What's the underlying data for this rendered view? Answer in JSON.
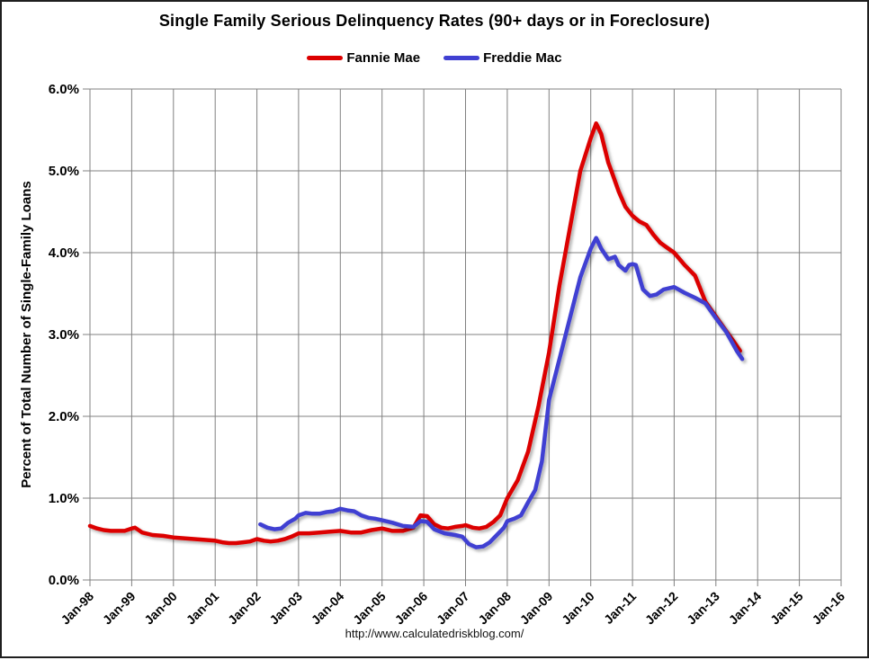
{
  "title": "Single Family Serious Delinquency Rates (90+ days or in Foreclosure)",
  "legend": [
    {
      "label": "Fannie Mae",
      "color": "#dc0000"
    },
    {
      "label": "Freddie Mac",
      "color": "#4040d2"
    }
  ],
  "footer": {
    "url": "http://www.calculatedriskblog.com/"
  },
  "chart_data": {
    "type": "line",
    "title": "Single Family Serious Delinquency Rates (90+ days or in Foreclosure)",
    "xlabel": "",
    "ylabel": "Percent of Total Number of Single-Family Loans",
    "xlim": [
      1998,
      2016
    ],
    "ylim": [
      0,
      6
    ],
    "grid": true,
    "grid_color": "#808080",
    "legend_position": "top",
    "x_ticks": [
      "Jan-98",
      "Jan-99",
      "Jan-00",
      "Jan-01",
      "Jan-02",
      "Jan-03",
      "Jan-04",
      "Jan-05",
      "Jan-06",
      "Jan-07",
      "Jan-08",
      "Jan-09",
      "Jan-10",
      "Jan-11",
      "Jan-12",
      "Jan-13",
      "Jan-14",
      "Jan-15",
      "Jan-16"
    ],
    "x_tick_years": [
      1998,
      1999,
      2000,
      2001,
      2002,
      2003,
      2004,
      2005,
      2006,
      2007,
      2008,
      2009,
      2010,
      2011,
      2012,
      2013,
      2014,
      2015,
      2016
    ],
    "y_ticks": [
      "0.0%",
      "1.0%",
      "2.0%",
      "3.0%",
      "4.0%",
      "5.0%",
      "6.0%"
    ],
    "series": [
      {
        "name": "Fannie Mae",
        "color": "#dc0000",
        "points": [
          [
            1998.0,
            0.66
          ],
          [
            1998.17,
            0.63
          ],
          [
            1998.33,
            0.61
          ],
          [
            1998.5,
            0.6
          ],
          [
            1998.67,
            0.6
          ],
          [
            1998.83,
            0.6
          ],
          [
            1999.0,
            0.63
          ],
          [
            1999.08,
            0.64
          ],
          [
            1999.25,
            0.58
          ],
          [
            1999.5,
            0.55
          ],
          [
            1999.75,
            0.54
          ],
          [
            2000.0,
            0.52
          ],
          [
            2000.25,
            0.51
          ],
          [
            2000.5,
            0.5
          ],
          [
            2000.75,
            0.49
          ],
          [
            2001.0,
            0.48
          ],
          [
            2001.17,
            0.46
          ],
          [
            2001.33,
            0.45
          ],
          [
            2001.5,
            0.45
          ],
          [
            2001.67,
            0.46
          ],
          [
            2001.83,
            0.47
          ],
          [
            2002.0,
            0.5
          ],
          [
            2002.17,
            0.48
          ],
          [
            2002.33,
            0.47
          ],
          [
            2002.5,
            0.48
          ],
          [
            2002.67,
            0.5
          ],
          [
            2002.83,
            0.53
          ],
          [
            2003.0,
            0.57
          ],
          [
            2003.25,
            0.57
          ],
          [
            2003.5,
            0.58
          ],
          [
            2003.75,
            0.59
          ],
          [
            2004.0,
            0.6
          ],
          [
            2004.25,
            0.58
          ],
          [
            2004.5,
            0.58
          ],
          [
            2004.75,
            0.61
          ],
          [
            2005.0,
            0.63
          ],
          [
            2005.25,
            0.6
          ],
          [
            2005.5,
            0.6
          ],
          [
            2005.75,
            0.64
          ],
          [
            2005.92,
            0.79
          ],
          [
            2006.08,
            0.78
          ],
          [
            2006.25,
            0.68
          ],
          [
            2006.42,
            0.64
          ],
          [
            2006.58,
            0.63
          ],
          [
            2006.75,
            0.65
          ],
          [
            2006.92,
            0.66
          ],
          [
            2007.0,
            0.67
          ],
          [
            2007.17,
            0.64
          ],
          [
            2007.33,
            0.63
          ],
          [
            2007.5,
            0.65
          ],
          [
            2007.67,
            0.71
          ],
          [
            2007.83,
            0.79
          ],
          [
            2008.0,
            1.0
          ],
          [
            2008.25,
            1.22
          ],
          [
            2008.5,
            1.57
          ],
          [
            2008.75,
            2.13
          ],
          [
            2009.0,
            2.78
          ],
          [
            2009.25,
            3.6
          ],
          [
            2009.5,
            4.3
          ],
          [
            2009.75,
            5.0
          ],
          [
            2010.0,
            5.4
          ],
          [
            2010.13,
            5.58
          ],
          [
            2010.25,
            5.45
          ],
          [
            2010.42,
            5.1
          ],
          [
            2010.5,
            4.99
          ],
          [
            2010.67,
            4.75
          ],
          [
            2010.83,
            4.56
          ],
          [
            2011.0,
            4.45
          ],
          [
            2011.17,
            4.38
          ],
          [
            2011.33,
            4.34
          ],
          [
            2011.5,
            4.22
          ],
          [
            2011.67,
            4.12
          ],
          [
            2011.83,
            4.06
          ],
          [
            2012.0,
            4.0
          ],
          [
            2012.25,
            3.85
          ],
          [
            2012.5,
            3.72
          ],
          [
            2012.75,
            3.4
          ],
          [
            2013.0,
            3.22
          ],
          [
            2013.25,
            3.04
          ],
          [
            2013.42,
            2.92
          ],
          [
            2013.58,
            2.8
          ]
        ]
      },
      {
        "name": "Freddie Mac",
        "color": "#4040d2",
        "points": [
          [
            2002.08,
            0.68
          ],
          [
            2002.25,
            0.64
          ],
          [
            2002.42,
            0.62
          ],
          [
            2002.58,
            0.63
          ],
          [
            2002.75,
            0.7
          ],
          [
            2002.92,
            0.75
          ],
          [
            2003.0,
            0.79
          ],
          [
            2003.17,
            0.82
          ],
          [
            2003.33,
            0.81
          ],
          [
            2003.5,
            0.81
          ],
          [
            2003.67,
            0.83
          ],
          [
            2003.83,
            0.84
          ],
          [
            2004.0,
            0.87
          ],
          [
            2004.17,
            0.85
          ],
          [
            2004.33,
            0.84
          ],
          [
            2004.5,
            0.79
          ],
          [
            2004.67,
            0.76
          ],
          [
            2004.83,
            0.75
          ],
          [
            2005.0,
            0.73
          ],
          [
            2005.25,
            0.7
          ],
          [
            2005.5,
            0.66
          ],
          [
            2005.75,
            0.65
          ],
          [
            2005.92,
            0.72
          ],
          [
            2006.08,
            0.71
          ],
          [
            2006.25,
            0.62
          ],
          [
            2006.5,
            0.57
          ],
          [
            2006.75,
            0.55
          ],
          [
            2006.92,
            0.53
          ],
          [
            2007.08,
            0.44
          ],
          [
            2007.25,
            0.4
          ],
          [
            2007.42,
            0.41
          ],
          [
            2007.58,
            0.46
          ],
          [
            2007.75,
            0.55
          ],
          [
            2007.92,
            0.64
          ],
          [
            2008.0,
            0.72
          ],
          [
            2008.17,
            0.75
          ],
          [
            2008.33,
            0.79
          ],
          [
            2008.5,
            0.95
          ],
          [
            2008.67,
            1.1
          ],
          [
            2008.83,
            1.45
          ],
          [
            2009.0,
            2.2
          ],
          [
            2009.25,
            2.7
          ],
          [
            2009.5,
            3.2
          ],
          [
            2009.75,
            3.7
          ],
          [
            2010.0,
            4.05
          ],
          [
            2010.13,
            4.18
          ],
          [
            2010.25,
            4.05
          ],
          [
            2010.42,
            3.92
          ],
          [
            2010.58,
            3.95
          ],
          [
            2010.67,
            3.85
          ],
          [
            2010.83,
            3.78
          ],
          [
            2010.92,
            3.85
          ],
          [
            2011.0,
            3.86
          ],
          [
            2011.08,
            3.85
          ],
          [
            2011.25,
            3.55
          ],
          [
            2011.42,
            3.47
          ],
          [
            2011.58,
            3.49
          ],
          [
            2011.75,
            3.55
          ],
          [
            2011.92,
            3.57
          ],
          [
            2012.0,
            3.58
          ],
          [
            2012.25,
            3.51
          ],
          [
            2012.5,
            3.45
          ],
          [
            2012.75,
            3.38
          ],
          [
            2013.0,
            3.2
          ],
          [
            2013.25,
            3.03
          ],
          [
            2013.5,
            2.8
          ],
          [
            2013.63,
            2.7
          ]
        ]
      }
    ]
  }
}
